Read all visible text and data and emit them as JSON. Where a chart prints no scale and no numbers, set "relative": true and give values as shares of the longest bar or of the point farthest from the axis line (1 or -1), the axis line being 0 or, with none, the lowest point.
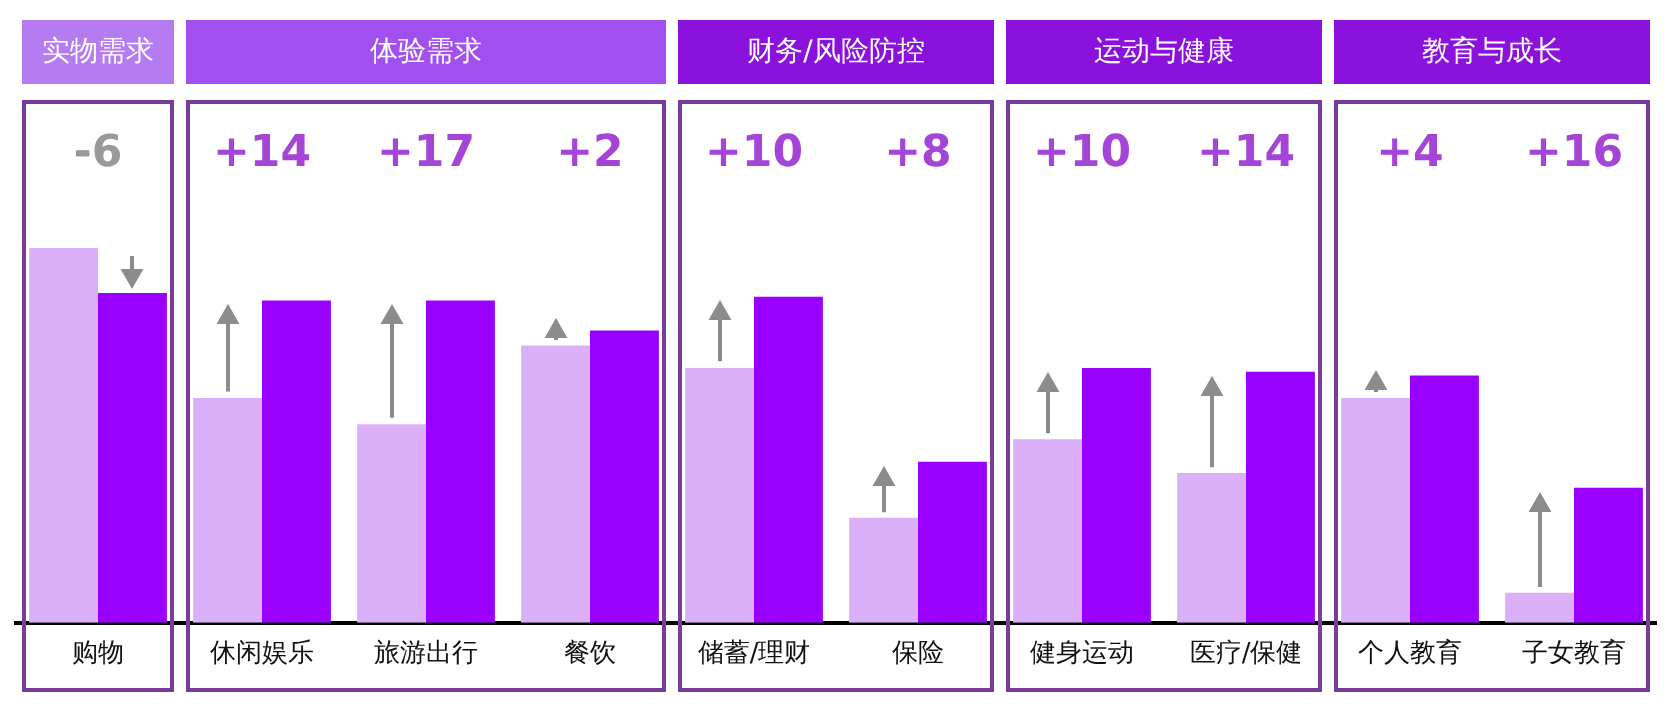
{
  "chart_data": {
    "type": "bar",
    "relative": true,
    "legend": false,
    "grid": false,
    "categories": [
      "购物",
      "休闲娱乐",
      "旅游出行",
      "餐饮",
      "储蓄/理财",
      "保险",
      "健身运动",
      "医疗/保健",
      "个人教育",
      "子女教育"
    ],
    "series": [
      {
        "color": "#dcb0f8",
        "values": [
          1,
          0.6,
          0.53,
          0.74,
          0.68,
          0.28,
          0.49,
          0.4,
          0.6,
          0.08
        ]
      },
      {
        "color": "#9900ff",
        "values": [
          0.88,
          0.86,
          0.86,
          0.78,
          0.87,
          0.43,
          0.68,
          0.67,
          0.66,
          0.36
        ]
      }
    ],
    "annotations": [
      "实物需求",
      "体验需求",
      "财务/风险防控",
      "运动与健康",
      "教育与成长",
      "-6",
      "+14",
      "+17",
      "+2",
      "+10",
      "+8",
      "+10",
      "+14",
      "+4",
      "+16"
    ]
  }
}
